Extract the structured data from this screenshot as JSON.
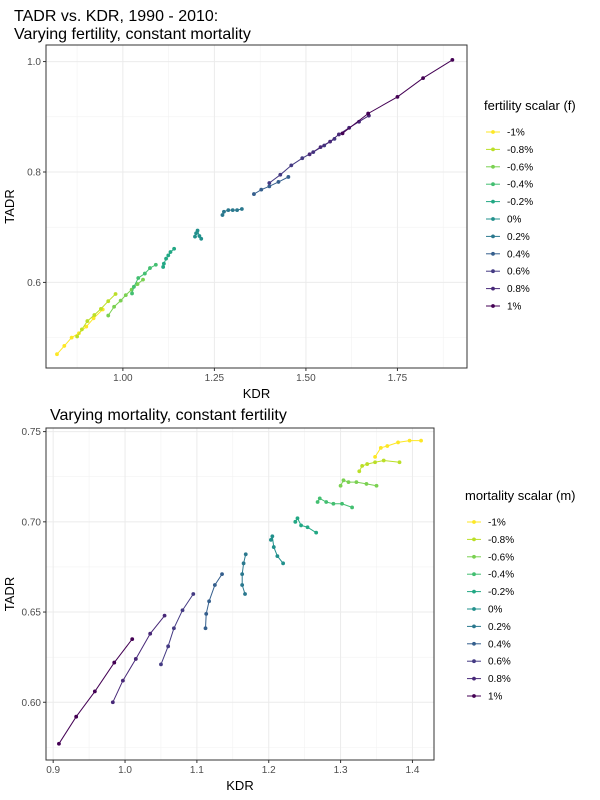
{
  "chart_data": [
    {
      "type": "line",
      "title": "TADR vs. KDR, 1990 - 2010:",
      "subtitle": "Varying fertility, constant mortality",
      "xlabel": "KDR",
      "ylabel": "TADR",
      "xlim": [
        0.79,
        1.94
      ],
      "ylim": [
        0.445,
        1.03
      ],
      "xticks": [
        1.0,
        1.25,
        1.5,
        1.75
      ],
      "xticklabels": [
        "1.00",
        "1.25",
        "1.50",
        "1.75"
      ],
      "yticks": [
        0.6,
        0.8,
        1.0
      ],
      "yticklabels": [
        "0.6",
        "0.8",
        "1.0"
      ],
      "grid": true,
      "legend_title": "fertility scalar (f)",
      "legend_position": "right",
      "series": [
        {
          "name": "-1%",
          "color": "#FDE725",
          "x": [
            0.82,
            0.84,
            0.86,
            0.88,
            0.9,
            0.92,
            0.945
          ],
          "y": [
            0.47,
            0.485,
            0.5,
            0.508,
            0.52,
            0.535,
            0.551
          ]
        },
        {
          "name": "-0.8%",
          "color": "#BBDF27",
          "x": [
            0.875,
            0.888,
            0.903,
            0.922,
            0.94,
            0.96,
            0.98
          ],
          "y": [
            0.502,
            0.515,
            0.53,
            0.541,
            0.552,
            0.566,
            0.579
          ]
        },
        {
          "name": "-0.6%",
          "color": "#7AD151",
          "x": [
            0.96,
            0.976,
            0.994,
            1.008,
            1.024,
            1.04,
            1.055
          ],
          "y": [
            0.54,
            0.556,
            0.567,
            0.577,
            0.587,
            0.597,
            0.605
          ]
        },
        {
          "name": "-0.4%",
          "color": "#43BF71",
          "x": [
            1.025,
            1.03,
            1.042,
            1.06,
            1.074,
            1.09
          ],
          "y": [
            0.58,
            0.592,
            0.608,
            0.616,
            0.626,
            0.632
          ]
        },
        {
          "name": "-0.2%",
          "color": "#22A884",
          "x": [
            1.11,
            1.112,
            1.118,
            1.124,
            1.13,
            1.14
          ],
          "y": [
            0.628,
            0.634,
            0.643,
            0.649,
            0.655,
            0.661
          ]
        },
        {
          "name": "0%",
          "color": "#21908C",
          "x": [
            1.197,
            1.2,
            1.204,
            1.209,
            1.214
          ],
          "y": [
            0.683,
            0.689,
            0.694,
            0.684,
            0.679
          ]
        },
        {
          "name": "0.2%",
          "color": "#2A788E",
          "x": [
            1.272,
            1.276,
            1.288,
            1.3,
            1.312,
            1.325
          ],
          "y": [
            0.722,
            0.728,
            0.731,
            0.731,
            0.731,
            0.733
          ]
        },
        {
          "name": "0.4%",
          "color": "#355F8D",
          "x": [
            1.358,
            1.378,
            1.4,
            1.425,
            1.452
          ],
          "y": [
            0.76,
            0.768,
            0.774,
            0.782,
            0.791
          ]
        },
        {
          "name": "0.6%",
          "color": "#443A83",
          "x": [
            1.4,
            1.43,
            1.46,
            1.49,
            1.52,
            1.55,
            1.578
          ],
          "y": [
            0.78,
            0.795,
            0.812,
            0.825,
            0.836,
            0.848,
            0.86
          ]
        },
        {
          "name": "0.8%",
          "color": "#482878",
          "x": [
            1.51,
            1.54,
            1.566,
            1.59,
            1.618,
            1.645,
            1.672
          ],
          "y": [
            0.832,
            0.845,
            0.855,
            0.868,
            0.88,
            0.891,
            0.902
          ]
        },
        {
          "name": "1%",
          "color": "#440154",
          "x": [
            1.6,
            1.67,
            1.75,
            1.82,
            1.9
          ],
          "y": [
            0.87,
            0.906,
            0.936,
            0.97,
            1.003
          ]
        }
      ]
    },
    {
      "type": "line",
      "title": "Varying mortality, constant fertility",
      "xlabel": "KDR",
      "ylabel": "TADR",
      "xlim": [
        0.89,
        1.43
      ],
      "ylim": [
        0.568,
        0.752
      ],
      "xticks": [
        0.9,
        1.0,
        1.1,
        1.2,
        1.3,
        1.4
      ],
      "xticklabels": [
        "0.9",
        "1.0",
        "1.1",
        "1.2",
        "1.3",
        "1.4"
      ],
      "yticks": [
        0.6,
        0.65,
        0.7,
        0.75
      ],
      "yticklabels": [
        "0.60",
        "0.65",
        "0.70",
        "0.75"
      ],
      "grid": true,
      "legend_title": "mortality scalar (m)",
      "legend_position": "right",
      "series": [
        {
          "name": "-1%",
          "color": "#FDE725",
          "x": [
            1.348,
            1.356,
            1.365,
            1.38,
            1.396,
            1.412
          ],
          "y": [
            0.736,
            0.741,
            0.742,
            0.744,
            0.745,
            0.745
          ]
        },
        {
          "name": "-0.8%",
          "color": "#BBDF27",
          "x": [
            1.326,
            1.33,
            1.337,
            1.348,
            1.36,
            1.382
          ],
          "y": [
            0.728,
            0.731,
            0.732,
            0.733,
            0.734,
            0.733
          ]
        },
        {
          "name": "-0.6%",
          "color": "#7AD151",
          "x": [
            1.3,
            1.304,
            1.311,
            1.322,
            1.336,
            1.35
          ],
          "y": [
            0.72,
            0.723,
            0.722,
            0.722,
            0.721,
            0.72
          ]
        },
        {
          "name": "-0.4%",
          "color": "#43BF71",
          "x": [
            1.268,
            1.271,
            1.28,
            1.29,
            1.302,
            1.316
          ],
          "y": [
            0.711,
            0.713,
            0.711,
            0.71,
            0.71,
            0.708
          ]
        },
        {
          "name": "-0.2%",
          "color": "#22A884",
          "x": [
            1.237,
            1.24,
            1.245,
            1.254,
            1.266
          ],
          "y": [
            0.7,
            0.702,
            0.698,
            0.697,
            0.694
          ]
        },
        {
          "name": "0%",
          "color": "#21908C",
          "x": [
            1.203,
            1.205,
            1.207,
            1.212,
            1.22
          ],
          "y": [
            0.69,
            0.692,
            0.686,
            0.681,
            0.677
          ]
        },
        {
          "name": "0.2%",
          "color": "#2A788E",
          "x": [
            1.168,
            1.165,
            1.163,
            1.163,
            1.167
          ],
          "y": [
            0.682,
            0.677,
            0.671,
            0.665,
            0.66
          ]
        },
        {
          "name": "0.4%",
          "color": "#355F8D",
          "x": [
            1.135,
            1.125,
            1.117,
            1.113,
            1.112
          ],
          "y": [
            0.671,
            0.665,
            0.656,
            0.649,
            0.641
          ]
        },
        {
          "name": "0.6%",
          "color": "#443A83",
          "x": [
            1.095,
            1.08,
            1.068,
            1.06,
            1.05
          ],
          "y": [
            0.66,
            0.651,
            0.641,
            0.631,
            0.621
          ]
        },
        {
          "name": "0.8%",
          "color": "#482878",
          "x": [
            1.055,
            1.035,
            1.015,
            0.997,
            0.983
          ],
          "y": [
            0.648,
            0.638,
            0.624,
            0.612,
            0.6
          ]
        },
        {
          "name": "1%",
          "color": "#440154",
          "x": [
            1.01,
            0.985,
            0.958,
            0.932,
            0.908
          ],
          "y": [
            0.635,
            0.622,
            0.606,
            0.592,
            0.577
          ]
        }
      ]
    }
  ]
}
